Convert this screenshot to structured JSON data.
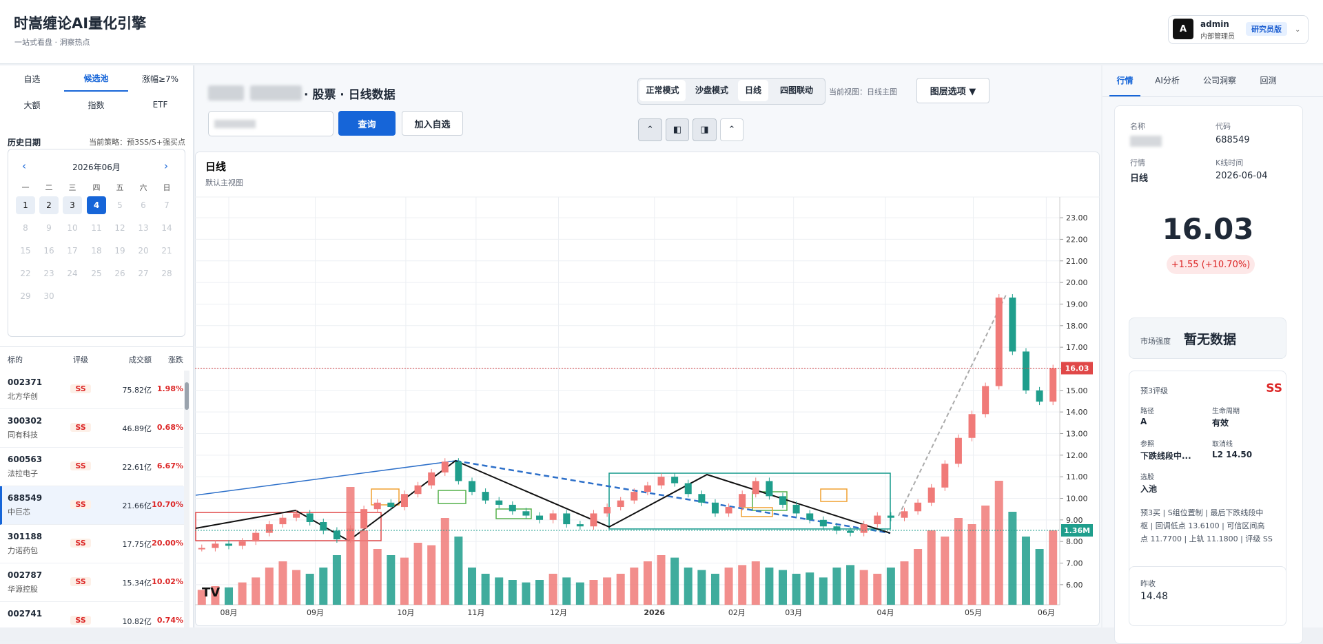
{
  "header": {
    "title": "时嵩缠论AI量化引擎",
    "subtitle": "一站式看盘 · 洞察热点",
    "user": {
      "avatar": "A",
      "name": "admin",
      "role": "内部管理员",
      "badge": "研究员版"
    }
  },
  "left": {
    "tabs": [
      "自选",
      "候选池",
      "涨幅≥7%",
      "大额",
      "指数",
      "ETF"
    ],
    "active_tab": 1,
    "history_label": "历史日期",
    "strategy": "当前策略：预3SS/S+强买点",
    "calendar": {
      "prev": "‹",
      "title": "2026年06月",
      "next": "›",
      "weekdays": [
        "一",
        "二",
        "三",
        "四",
        "五",
        "六",
        "日"
      ],
      "days": [
        1,
        2,
        3,
        4,
        5,
        6,
        7,
        8,
        9,
        10,
        11,
        12,
        13,
        14,
        15,
        16,
        17,
        18,
        19,
        20,
        21,
        22,
        23,
        24,
        25,
        26,
        27,
        28,
        29,
        30
      ],
      "selected_day": 4
    },
    "table": {
      "headers": [
        "标的",
        "评级",
        "成交额",
        "涨跌"
      ],
      "selected_row": 3,
      "rows": [
        [
          "002371",
          "北方华创",
          "SS",
          "75.82亿",
          "1.98%"
        ],
        [
          "300302",
          "同有科技",
          "SS",
          "46.89亿",
          "0.68%"
        ],
        [
          "600563",
          "法拉电子",
          "SS",
          "22.61亿",
          "6.67%"
        ],
        [
          "688549",
          "中巨芯",
          "SS",
          "21.66亿",
          "10.70%"
        ],
        [
          "301188",
          "力诺药包",
          "SS",
          "17.75亿",
          "20.00%"
        ],
        [
          "002787",
          "华源控股",
          "SS",
          "15.34亿",
          "10.02%"
        ],
        [
          "002741",
          "",
          "SS",
          "10.82亿",
          "0.74%"
        ]
      ]
    }
  },
  "main": {
    "heading": "· 股票 · 日线数据",
    "query": "查询",
    "add_watch": "加入自选",
    "modes": [
      "正常模式",
      "沙盘模式",
      "日线",
      "四图联动"
    ],
    "view": "当前视图：日线主图",
    "layers": "图层选项 ▼"
  },
  "chart_data": {
    "type": "candlestick",
    "title": "日线",
    "subtitle": "默认主视图",
    "xlim": [
      -0.5,
      63.5
    ],
    "xticks": [
      {
        "value": 2,
        "label": "08月"
      },
      {
        "value": 8.4,
        "label": "09月"
      },
      {
        "value": 15.1,
        "label": "10月"
      },
      {
        "value": 20.3,
        "label": "11月"
      },
      {
        "value": 26.4,
        "label": "12月"
      },
      {
        "value": 33.5,
        "label": "2026"
      },
      {
        "value": 39.6,
        "label": "02月"
      },
      {
        "value": 43.8,
        "label": "03月"
      },
      {
        "value": 50.6,
        "label": "04月"
      },
      {
        "value": 57.1,
        "label": "05月"
      },
      {
        "value": 62.5,
        "label": "06月"
      }
    ],
    "ylim": [
      5.07,
      23.96
    ],
    "yticks": [
      {
        "value": 6,
        "label": "6.00"
      },
      {
        "value": 7,
        "label": "7.00"
      },
      {
        "value": 8,
        "label": "8.00"
      },
      {
        "value": 9,
        "label": "9.00"
      },
      {
        "value": 10,
        "label": "10.00"
      },
      {
        "value": 11,
        "label": "11.00"
      },
      {
        "value": 12,
        "label": "12.00"
      },
      {
        "value": 13,
        "label": "13.00"
      },
      {
        "value": 14,
        "label": "14.00"
      },
      {
        "value": 15,
        "label": "15.00"
      },
      {
        "value": 16,
        "label": "16.00"
      },
      {
        "value": 17,
        "label": "17.00"
      },
      {
        "value": 18,
        "label": "18.00"
      },
      {
        "value": 19,
        "label": "19.00"
      },
      {
        "value": 20,
        "label": "20.00"
      },
      {
        "value": 21,
        "label": "21.00"
      },
      {
        "value": 22,
        "label": "22.00"
      },
      {
        "value": 23,
        "label": "23.00"
      }
    ],
    "grid": true,
    "up_color": "#f07a78",
    "down_color": "#1f9e8c",
    "values": [
      7.7,
      7.9,
      7.8,
      8.0,
      8.4,
      8.8,
      9.1,
      9.3,
      8.9,
      8.5,
      8.1,
      8.6,
      9.5,
      9.8,
      9.6,
      10.2,
      10.6,
      11.2,
      11.7,
      10.8,
      10.3,
      9.9,
      9.7,
      9.4,
      9.2,
      9.0,
      9.3,
      8.8,
      8.7,
      9.3,
      9.6,
      9.9,
      10.3,
      10.6,
      11.0,
      10.7,
      10.2,
      9.8,
      9.3,
      9.6,
      10.2,
      10.8,
      10.1,
      9.7,
      9.3,
      9.0,
      8.7,
      8.5,
      8.4,
      8.8,
      9.2,
      9.1,
      9.4,
      9.8,
      10.5,
      11.6,
      12.8,
      13.9,
      15.2,
      19.3,
      16.8,
      15.0,
      14.48,
      16.03
    ],
    "last_label": "16.03",
    "volume": {
      "max": 100,
      "label": "1.36M",
      "values": [
        12,
        15,
        14,
        18,
        22,
        30,
        35,
        28,
        25,
        30,
        40,
        95,
        60,
        45,
        40,
        38,
        50,
        48,
        70,
        55,
        30,
        25,
        22,
        20,
        18,
        20,
        25,
        22,
        18,
        20,
        22,
        25,
        30,
        35,
        40,
        38,
        30,
        28,
        25,
        30,
        32,
        35,
        30,
        28,
        25,
        26,
        22,
        30,
        32,
        28,
        25,
        30,
        35,
        45,
        60,
        55,
        70,
        65,
        80,
        100,
        75,
        55,
        45,
        60
      ]
    }
  },
  "right": {
    "tabs": [
      "行情",
      "AI分析",
      "公司洞察",
      "回测"
    ],
    "name_label": "名称",
    "code_label": "代码",
    "code": "688549",
    "period_label": "行情",
    "period": "日线",
    "time_label": "K线时间",
    "time": "2026-06-04",
    "price": "16.03",
    "change": "+1.55 (+10.70%)",
    "strength_label": "市场强度",
    "strength": "暂无数据",
    "rating_label": "预3评级",
    "rating": "SS",
    "fields": [
      [
        "路径",
        "A"
      ],
      [
        "生命周期",
        "有效"
      ],
      [
        "参照",
        "下跌线段中..."
      ],
      [
        "取消线",
        "L2 14.50"
      ],
      [
        "选股",
        "入池"
      ]
    ],
    "desc": [
      "预3买 | S组位置制 | 最后下跌线段中",
      "枢 | 回调低点 13.6100 | 可信区间高",
      "点 11.7700 | 上轨 11.1800 | 评级 SS"
    ],
    "prev_close_label": "昨收",
    "prev_close": "14.48"
  }
}
